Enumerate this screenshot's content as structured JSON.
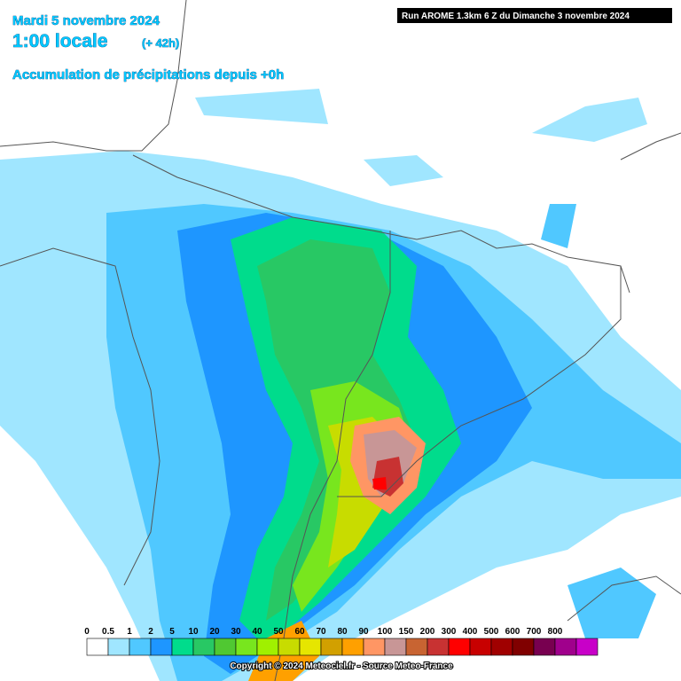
{
  "header": {
    "date": "Mardi 5 novembre 2024",
    "time": "1:00 locale",
    "lead": "(+ 42h)",
    "product": "Accumulation de précipitations depuis +0h",
    "run": "Run AROME 1.3km 6 Z du Dimanche 3 novembre 2024"
  },
  "legend": {
    "labels": [
      "0",
      "0.5",
      "1",
      "2",
      "5",
      "10",
      "20",
      "30",
      "40",
      "50",
      "60",
      "70",
      "80",
      "90",
      "100",
      "150",
      "200",
      "300",
      "400",
      "500",
      "600",
      "700",
      "800"
    ],
    "colors": [
      "#ffffff",
      "#a0e6ff",
      "#50c8ff",
      "#1e96ff",
      "#00dc8c",
      "#28c864",
      "#50c832",
      "#78e61e",
      "#a0f000",
      "#c8dc00",
      "#e6e600",
      "#d2a000",
      "#ffa000",
      "#ff9664",
      "#c89696",
      "#c86432",
      "#c83232",
      "#ff0000",
      "#c80000",
      "#a00000",
      "#800000",
      "#780050",
      "#a0008c",
      "#c800c8"
    ]
  },
  "footer": {
    "copyright": "Copyright © 2024 Meteociel.fr - Source Meteo-France"
  }
}
